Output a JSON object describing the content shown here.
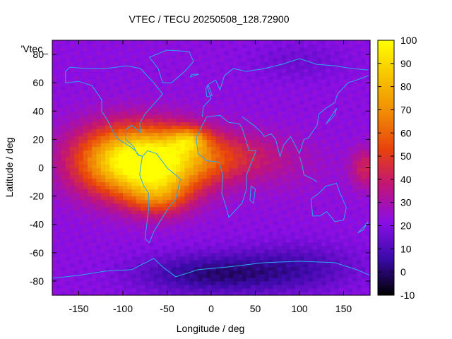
{
  "chart_data": {
    "type": "heatmap",
    "title": "VTEC / TECU 20250508_128.72900",
    "xlabel": "Longitude / deg",
    "ylabel": "Latitude / deg",
    "xlim": [
      -180,
      180
    ],
    "ylim": [
      -90,
      90
    ],
    "x_ticks": [
      -150,
      -100,
      -50,
      0,
      50,
      100,
      150
    ],
    "y_ticks": [
      -80,
      -60,
      -40,
      -20,
      0,
      20,
      40,
      60,
      80
    ],
    "colorbar": {
      "ticks": [
        -10,
        0,
        10,
        20,
        30,
        40,
        50,
        60,
        70,
        80,
        90,
        100
      ],
      "range": [
        -10,
        100
      ],
      "palette": "black-purple-red-orange-yellow"
    },
    "legend_entry": "'Vtec_",
    "grid_resolution": {
      "dlon": 5,
      "dlat": 2.5
    },
    "features": {
      "background_level": 22,
      "enhancements": [
        {
          "lon": -65,
          "lat": 5,
          "peak": 72,
          "slon": 45,
          "slat": 16
        },
        {
          "lon": -60,
          "lat": -20,
          "peak": 28,
          "slon": 25,
          "slat": 10
        },
        {
          "lon": -25,
          "lat": 20,
          "peak": 30,
          "slon": 15,
          "slat": 6
        },
        {
          "lon": -110,
          "lat": 5,
          "peak": 30,
          "slon": 40,
          "slat": 18
        },
        {
          "lon": 20,
          "lat": 8,
          "peak": 18,
          "slon": 45,
          "slat": 12
        },
        {
          "lon": 175,
          "lat": 0,
          "peak": 20,
          "slon": 12,
          "slat": 10
        },
        {
          "lon": 90,
          "lat": 0,
          "peak": 4,
          "slon": 40,
          "slat": 15
        }
      ],
      "depressions": [
        {
          "lon": 0,
          "lat": -75,
          "depth": 20,
          "slon": 60,
          "slat": 10
        },
        {
          "lon": 100,
          "lat": -70,
          "depth": 12,
          "slon": 50,
          "slat": 12
        },
        {
          "lon": 100,
          "lat": 75,
          "depth": 6,
          "slon": 40,
          "slat": 10
        }
      ]
    }
  },
  "colors": {
    "coastline": "#2aa8e8",
    "colorscale": [
      "#000000",
      "#3b0aa8",
      "#8a0fe6",
      "#c0147a",
      "#e8420c",
      "#f08a06",
      "#f7c300",
      "#ffff00"
    ]
  }
}
